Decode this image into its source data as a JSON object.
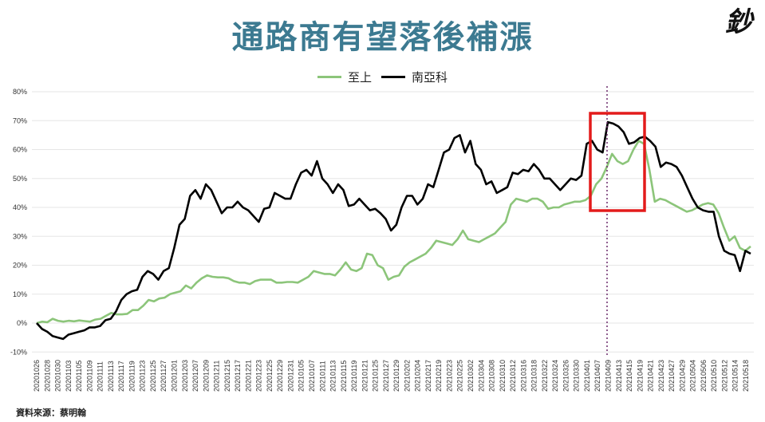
{
  "title": "通路商有望落後補漲",
  "logo_text": "鈔",
  "source": "資料來源：蔡明翰",
  "colors": {
    "title": "#3c7a91",
    "series_green": "#8cc57a",
    "series_black": "#000000",
    "highlight_box": "#e31b1b",
    "marker_line": "#6b2a6b",
    "grid": "#e6e6e6"
  },
  "legend": [
    {
      "name": "至上",
      "color": "#8cc57a"
    },
    {
      "name": "南亞科",
      "color": "#000000"
    }
  ],
  "chart_data": {
    "type": "line",
    "title": "通路商有望落後補漲",
    "xlabel": "",
    "ylabel": "",
    "ylim": [
      -10,
      80
    ],
    "y_ticks": [
      "80%",
      "70%",
      "60%",
      "50%",
      "40%",
      "30%",
      "20%",
      "10%",
      "0%",
      "-10%"
    ],
    "grid": true,
    "legend_position": "top",
    "x_tick_labels": [
      "20201026",
      "20201028",
      "20201030",
      "20201103",
      "20201105",
      "20201109",
      "20201111",
      "20201113",
      "20201117",
      "20201119",
      "20201123",
      "20201125",
      "20201127",
      "20201201",
      "20201203",
      "20201207",
      "20201209",
      "20201211",
      "20201215",
      "20201217",
      "20201221",
      "20201223",
      "20201225",
      "20201229",
      "20201231",
      "20210105",
      "20210107",
      "20210111",
      "20210113",
      "20210115",
      "20210119",
      "20210121",
      "20210125",
      "20210127",
      "20210129",
      "20210202",
      "20210204",
      "20210217",
      "20210219",
      "20210223",
      "20210225",
      "20210302",
      "20210304",
      "20210308",
      "20210310",
      "20210312",
      "20210316",
      "20210318",
      "20210322",
      "20210324",
      "20210326",
      "20210330",
      "20210401",
      "20210407",
      "20210409",
      "20210413",
      "20210415",
      "20210419",
      "20210421",
      "20210423",
      "20210427",
      "20210429",
      "20210504",
      "20210506",
      "20210510",
      "20210512",
      "20210514",
      "20210518"
    ],
    "series": [
      {
        "name": "至上",
        "values": [
          0,
          0.5,
          0.3,
          1.5,
          0.8,
          0.5,
          0.8,
          0.6,
          0.9,
          0.7,
          0.5,
          1.2,
          1.5,
          2.5,
          3.5,
          3,
          3,
          3.2,
          4.5,
          4.5,
          6,
          8,
          7.5,
          8.5,
          8.8,
          10,
          10.5,
          11,
          13,
          12,
          14,
          15.5,
          16.5,
          16,
          15.8,
          15.8,
          15.5,
          14.5,
          14,
          14,
          13.5,
          14.5,
          15,
          15,
          15,
          14,
          14,
          14.2,
          14.2,
          14,
          15,
          16,
          18,
          17.5,
          17,
          17,
          16.5,
          18.5,
          21,
          18.5,
          18,
          19,
          24,
          23.5,
          20,
          19,
          15,
          16,
          16.5,
          19.5,
          21,
          22,
          23,
          24,
          26,
          28.5,
          28,
          27.5,
          27,
          29,
          32,
          29,
          28.5,
          28,
          29,
          30,
          31,
          33,
          35,
          41,
          43,
          42.5,
          42,
          43,
          43,
          42,
          39.5,
          40,
          40,
          41,
          41.5,
          42,
          42,
          42.5,
          44,
          48,
          50,
          54,
          58.5,
          56,
          55,
          56,
          60,
          63,
          62,
          53,
          42,
          43,
          42.5,
          41.5,
          40.5,
          39.5,
          38.5,
          39,
          40,
          41,
          41.5,
          41,
          38,
          33,
          28.5,
          30,
          26,
          25,
          26.5
        ]
      },
      {
        "name": "南亞科",
        "values": [
          0,
          -2,
          -3,
          -4.5,
          -5,
          -5.5,
          -4,
          -3.5,
          -3,
          -2.5,
          -1.5,
          -1.5,
          -1,
          1,
          1.5,
          4,
          8,
          10,
          11,
          11.5,
          16,
          18,
          17,
          15,
          18,
          19,
          26,
          34,
          36,
          44,
          46,
          43,
          48,
          46,
          42,
          38,
          40,
          40,
          42,
          40,
          39,
          37,
          35,
          39.5,
          40,
          45,
          44,
          43,
          43,
          48,
          52,
          53,
          51,
          56,
          50,
          48,
          45,
          48,
          46,
          40.5,
          41,
          43,
          41,
          39,
          39.5,
          38,
          36,
          32,
          34,
          40,
          44,
          44,
          41,
          43,
          48,
          47,
          53,
          59,
          60,
          64,
          65,
          59,
          63,
          55,
          53,
          48,
          49,
          45,
          46,
          47,
          52,
          51.5,
          53,
          52.5,
          55,
          53,
          50,
          50,
          48,
          46,
          48,
          50,
          49.5,
          51,
          62,
          63,
          60,
          59,
          69.5,
          69,
          68,
          66,
          62,
          62.5,
          64,
          64.5,
          63,
          61,
          54,
          55.5,
          55,
          54,
          51,
          47,
          43,
          40,
          39,
          38.5,
          38.5,
          30,
          25,
          24,
          23.5,
          18,
          25,
          24
        ]
      }
    ],
    "annotations": [
      {
        "type": "rect",
        "label": "highlight",
        "x_from": "20210407",
        "x_to": "20210419",
        "y_from": 39,
        "y_to": 73,
        "color": "#e31b1b"
      },
      {
        "type": "vline",
        "x": "20210409",
        "style": "dotted",
        "color": "#6b2a6b"
      }
    ]
  }
}
